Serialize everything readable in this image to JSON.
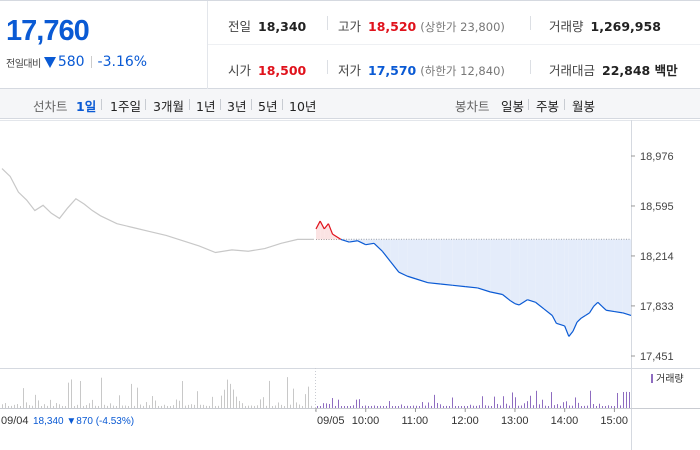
{
  "quote": {
    "price": "17,760",
    "change_label": "전일대비",
    "change_abs": "580",
    "change_pct": "-3.16%"
  },
  "stats": {
    "prev_close": {
      "label": "전일",
      "value": "18,340"
    },
    "high": {
      "label": "고가",
      "value": "18,520",
      "note": "(상한가 23,800)"
    },
    "volume": {
      "label": "거래량",
      "value": "1,269,958"
    },
    "open": {
      "label": "시가",
      "value": "18,500"
    },
    "low": {
      "label": "저가",
      "value": "17,570",
      "note": "(하한가 12,840)"
    },
    "turnover": {
      "label": "거래대금",
      "value": "22,848 백만"
    }
  },
  "toolbar": {
    "line_label": "선차트",
    "periods": [
      "1일",
      "1주일",
      "3개월",
      "1년",
      "3년",
      "5년",
      "10년"
    ],
    "active_period": "1일",
    "candle_label": "봉차트",
    "candles": [
      "일봉",
      "주봉",
      "월봉"
    ]
  },
  "colors": {
    "rise": "#e0121c",
    "fall": "#0a5ad4",
    "prev_day_line": "#c8c8c8",
    "fall_fill": "#e4ecfa",
    "rise_fill": "#fbe3e3",
    "volume_bar": "#8e6cc0"
  },
  "chart_data": {
    "type": "line",
    "y_ticks": [
      "18,976",
      "18,595",
      "18,214",
      "17,833",
      "17,451"
    ],
    "ylim": [
      17451,
      18976
    ],
    "reference_price": 18340,
    "x_labels": [
      "09/05",
      "10:00",
      "11:00",
      "12:00",
      "13:00",
      "14:00",
      "15:00"
    ],
    "prev_day": {
      "date": "09/04",
      "summary_close": "18,340",
      "summary_change": "870",
      "summary_pct": "(-4.53%)",
      "series": [
        {
          "t": "09:00",
          "price": 18880
        },
        {
          "t": "09:10",
          "price": 18820
        },
        {
          "t": "09:20",
          "price": 18700
        },
        {
          "t": "09:30",
          "price": 18640
        },
        {
          "t": "09:40",
          "price": 18560
        },
        {
          "t": "09:50",
          "price": 18600
        },
        {
          "t": "10:00",
          "price": 18540
        },
        {
          "t": "10:10",
          "price": 18500
        },
        {
          "t": "10:20",
          "price": 18580
        },
        {
          "t": "10:30",
          "price": 18650
        },
        {
          "t": "10:40",
          "price": 18610
        },
        {
          "t": "10:50",
          "price": 18560
        },
        {
          "t": "11:00",
          "price": 18520
        },
        {
          "t": "11:20",
          "price": 18460
        },
        {
          "t": "11:40",
          "price": 18430
        },
        {
          "t": "12:00",
          "price": 18400
        },
        {
          "t": "12:20",
          "price": 18370
        },
        {
          "t": "12:40",
          "price": 18330
        },
        {
          "t": "13:00",
          "price": 18290
        },
        {
          "t": "13:20",
          "price": 18240
        },
        {
          "t": "13:40",
          "price": 18260
        },
        {
          "t": "14:00",
          "price": 18250
        },
        {
          "t": "14:20",
          "price": 18270
        },
        {
          "t": "14:40",
          "price": 18310
        },
        {
          "t": "15:00",
          "price": 18340
        },
        {
          "t": "15:20",
          "price": 18340
        }
      ]
    },
    "today": {
      "date": "09/05",
      "series": [
        {
          "t": "09:00",
          "price": 18420
        },
        {
          "t": "09:05",
          "price": 18480
        },
        {
          "t": "09:10",
          "price": 18420
        },
        {
          "t": "09:15",
          "price": 18460
        },
        {
          "t": "09:20",
          "price": 18380
        },
        {
          "t": "09:30",
          "price": 18340
        },
        {
          "t": "09:40",
          "price": 18320
        },
        {
          "t": "09:50",
          "price": 18330
        },
        {
          "t": "10:00",
          "price": 18300
        },
        {
          "t": "10:10",
          "price": 18310
        },
        {
          "t": "10:20",
          "price": 18250
        },
        {
          "t": "10:30",
          "price": 18170
        },
        {
          "t": "10:40",
          "price": 18090
        },
        {
          "t": "10:50",
          "price": 18060
        },
        {
          "t": "11:00",
          "price": 18040
        },
        {
          "t": "11:15",
          "price": 18010
        },
        {
          "t": "11:30",
          "price": 18000
        },
        {
          "t": "11:45",
          "price": 17990
        },
        {
          "t": "12:00",
          "price": 17980
        },
        {
          "t": "12:15",
          "price": 17970
        },
        {
          "t": "12:30",
          "price": 17940
        },
        {
          "t": "12:45",
          "price": 17920
        },
        {
          "t": "12:55",
          "price": 17870
        },
        {
          "t": "13:00",
          "price": 17850
        },
        {
          "t": "13:05",
          "price": 17840
        },
        {
          "t": "13:15",
          "price": 17880
        },
        {
          "t": "13:25",
          "price": 17860
        },
        {
          "t": "13:35",
          "price": 17810
        },
        {
          "t": "13:45",
          "price": 17760
        },
        {
          "t": "13:50",
          "price": 17700
        },
        {
          "t": "14:00",
          "price": 17680
        },
        {
          "t": "14:05",
          "price": 17600
        },
        {
          "t": "14:10",
          "price": 17640
        },
        {
          "t": "14:15",
          "price": 17710
        },
        {
          "t": "14:20",
          "price": 17740
        },
        {
          "t": "14:25",
          "price": 17760
        },
        {
          "t": "14:30",
          "price": 17780
        },
        {
          "t": "14:35",
          "price": 17830
        },
        {
          "t": "14:40",
          "price": 17860
        },
        {
          "t": "14:45",
          "price": 17830
        },
        {
          "t": "14:50",
          "price": 17800
        },
        {
          "t": "15:00",
          "price": 17790
        },
        {
          "t": "15:10",
          "price": 17780
        },
        {
          "t": "15:20",
          "price": 17760
        }
      ]
    },
    "volume_legend": "거래량"
  }
}
